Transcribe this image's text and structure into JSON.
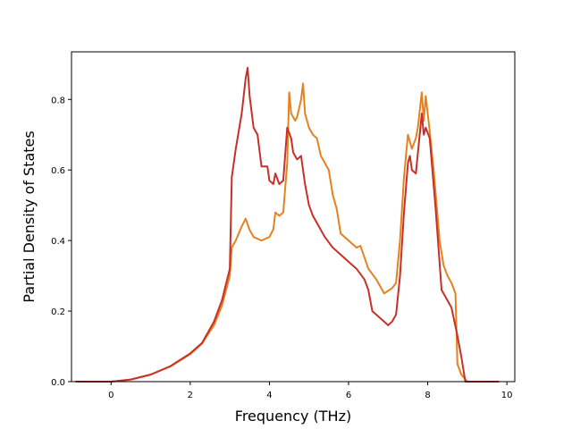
{
  "chart_data": {
    "type": "line",
    "title": "",
    "xlabel": "Frequency (THz)",
    "ylabel": "Partial Density of States",
    "xlim": [
      -1.0,
      10.2
    ],
    "ylim": [
      0.0,
      0.935
    ],
    "xticks": [
      0,
      2,
      4,
      6,
      8,
      10
    ],
    "yticks": [
      0.0,
      0.2,
      0.4,
      0.6,
      0.8
    ],
    "ytick_labels": [
      "0.0",
      "0.2",
      "0.4",
      "0.6",
      "0.8"
    ],
    "grid": false,
    "legend": "none",
    "series": [
      {
        "color": "#e6821e",
        "points": [
          [
            -0.9,
            0.0
          ],
          [
            0.0,
            0.0
          ],
          [
            0.5,
            0.006
          ],
          [
            1.0,
            0.02
          ],
          [
            1.5,
            0.043
          ],
          [
            2.0,
            0.078
          ],
          [
            2.3,
            0.108
          ],
          [
            2.6,
            0.16
          ],
          [
            2.8,
            0.215
          ],
          [
            3.0,
            0.3
          ],
          [
            3.05,
            0.38
          ],
          [
            3.15,
            0.4
          ],
          [
            3.3,
            0.44
          ],
          [
            3.4,
            0.462
          ],
          [
            3.5,
            0.43
          ],
          [
            3.6,
            0.41
          ],
          [
            3.8,
            0.4
          ],
          [
            4.0,
            0.41
          ],
          [
            4.1,
            0.432
          ],
          [
            4.15,
            0.48
          ],
          [
            4.25,
            0.47
          ],
          [
            4.35,
            0.48
          ],
          [
            4.45,
            0.62
          ],
          [
            4.5,
            0.82
          ],
          [
            4.55,
            0.76
          ],
          [
            4.65,
            0.74
          ],
          [
            4.7,
            0.75
          ],
          [
            4.8,
            0.8
          ],
          [
            4.85,
            0.845
          ],
          [
            4.9,
            0.76
          ],
          [
            5.0,
            0.72
          ],
          [
            5.1,
            0.7
          ],
          [
            5.2,
            0.69
          ],
          [
            5.3,
            0.64
          ],
          [
            5.5,
            0.6
          ],
          [
            5.6,
            0.53
          ],
          [
            5.7,
            0.49
          ],
          [
            5.8,
            0.42
          ],
          [
            6.0,
            0.4
          ],
          [
            6.2,
            0.38
          ],
          [
            6.3,
            0.385
          ],
          [
            6.5,
            0.32
          ],
          [
            6.7,
            0.29
          ],
          [
            6.9,
            0.25
          ],
          [
            7.1,
            0.265
          ],
          [
            7.2,
            0.28
          ],
          [
            7.3,
            0.4
          ],
          [
            7.4,
            0.58
          ],
          [
            7.5,
            0.7
          ],
          [
            7.6,
            0.66
          ],
          [
            7.7,
            0.69
          ],
          [
            7.75,
            0.72
          ],
          [
            7.85,
            0.82
          ],
          [
            7.9,
            0.74
          ],
          [
            7.95,
            0.81
          ],
          [
            8.05,
            0.71
          ],
          [
            8.15,
            0.6
          ],
          [
            8.3,
            0.4
          ],
          [
            8.4,
            0.33
          ],
          [
            8.5,
            0.3
          ],
          [
            8.6,
            0.28
          ],
          [
            8.7,
            0.25
          ],
          [
            8.75,
            0.05
          ],
          [
            8.85,
            0.02
          ],
          [
            9.0,
            0.0
          ],
          [
            9.8,
            0.0
          ]
        ]
      },
      {
        "color": "#c8302a",
        "points": [
          [
            -0.9,
            0.0
          ],
          [
            0.0,
            0.0
          ],
          [
            0.5,
            0.006
          ],
          [
            1.0,
            0.02
          ],
          [
            1.5,
            0.044
          ],
          [
            2.0,
            0.08
          ],
          [
            2.3,
            0.11
          ],
          [
            2.6,
            0.17
          ],
          [
            2.8,
            0.23
          ],
          [
            3.0,
            0.32
          ],
          [
            3.05,
            0.58
          ],
          [
            3.15,
            0.66
          ],
          [
            3.3,
            0.76
          ],
          [
            3.4,
            0.86
          ],
          [
            3.45,
            0.89
          ],
          [
            3.5,
            0.81
          ],
          [
            3.6,
            0.72
          ],
          [
            3.7,
            0.7
          ],
          [
            3.8,
            0.61
          ],
          [
            3.95,
            0.61
          ],
          [
            4.0,
            0.57
          ],
          [
            4.1,
            0.56
          ],
          [
            4.15,
            0.59
          ],
          [
            4.25,
            0.56
          ],
          [
            4.35,
            0.57
          ],
          [
            4.45,
            0.72
          ],
          [
            4.55,
            0.69
          ],
          [
            4.6,
            0.65
          ],
          [
            4.7,
            0.63
          ],
          [
            4.8,
            0.64
          ],
          [
            4.85,
            0.6
          ],
          [
            4.9,
            0.56
          ],
          [
            5.0,
            0.5
          ],
          [
            5.1,
            0.47
          ],
          [
            5.2,
            0.45
          ],
          [
            5.4,
            0.41
          ],
          [
            5.6,
            0.38
          ],
          [
            5.8,
            0.36
          ],
          [
            6.0,
            0.34
          ],
          [
            6.2,
            0.32
          ],
          [
            6.4,
            0.29
          ],
          [
            6.5,
            0.26
          ],
          [
            6.6,
            0.2
          ],
          [
            6.8,
            0.18
          ],
          [
            7.0,
            0.16
          ],
          [
            7.1,
            0.17
          ],
          [
            7.2,
            0.19
          ],
          [
            7.3,
            0.3
          ],
          [
            7.4,
            0.48
          ],
          [
            7.5,
            0.62
          ],
          [
            7.55,
            0.64
          ],
          [
            7.6,
            0.6
          ],
          [
            7.7,
            0.59
          ],
          [
            7.85,
            0.76
          ],
          [
            7.9,
            0.7
          ],
          [
            7.95,
            0.72
          ],
          [
            8.05,
            0.69
          ],
          [
            8.2,
            0.49
          ],
          [
            8.35,
            0.26
          ],
          [
            8.5,
            0.23
          ],
          [
            8.6,
            0.21
          ],
          [
            8.75,
            0.13
          ],
          [
            8.85,
            0.07
          ],
          [
            8.95,
            0.0
          ],
          [
            9.8,
            0.0
          ]
        ]
      }
    ]
  }
}
